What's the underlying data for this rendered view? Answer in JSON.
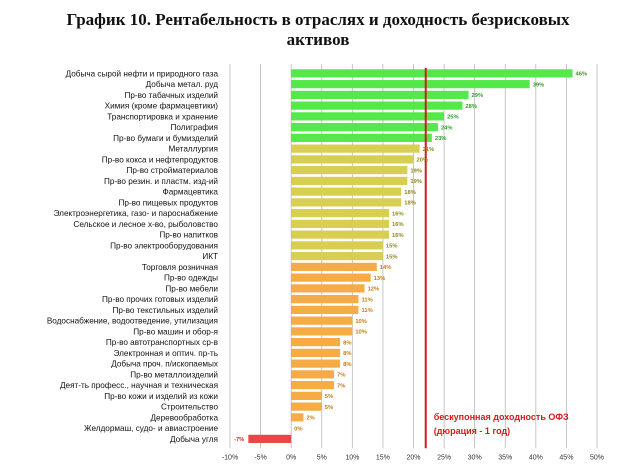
{
  "title_line1": "График 10. Рентабельность в отраслях и доходность безрисковых",
  "title_line2": "активов",
  "chart_data": {
    "type": "bar",
    "orientation": "horizontal",
    "xlim": [
      -10,
      50
    ],
    "xticks": [
      -10,
      -5,
      0,
      5,
      10,
      15,
      20,
      25,
      30,
      35,
      40,
      45,
      50
    ],
    "tick_suffix": "%",
    "grid": true,
    "categories": [
      "Добыча сырой нефти и природного газа",
      "Добыча метал. руд",
      "Пр-во табачных изделий",
      "Химия (кроме фармацевтики)",
      "Транспортировка и хранение",
      "Полиграфия",
      "Пр-во бумаги и бумизделий",
      "Металлургия",
      "Пр-во кокса и нефтепродуктов",
      "Пр-во стройматериалов",
      "Пр-во резин. и пластм. изд-ий",
      "Фармацевтика",
      "Пр-во пищевых продуктов",
      "Электроэнергетика, газо- и пароснабжение",
      "Сельское и лесное х-во, рыболовство",
      "Пр-во напитков",
      "Пр-во электрооборудования",
      "ИКТ",
      "Торговля розничная",
      "Пр-во одежды",
      "Пр-во мебели",
      "Пр-во прочих готовых изделий",
      "Пр-во текстильных изделий",
      "Водоснабжение, водоотведение, утилизация",
      "Пр-во машин и обор-я",
      "Пр-во автотранспортных ср-в",
      "Электронная и оптич. пр-ть",
      "Добыча проч. п/ископаемых",
      "Пр-во металлоизделий",
      "Деят-ть професс., научная и техническая",
      "Пр-во кожи и изделий из кожи",
      "Строительство",
      "Деревообработка",
      "Желдормаш, судо- и авиастроение",
      "Добыча угля"
    ],
    "values": [
      46,
      39,
      29,
      28,
      25,
      24,
      23,
      21,
      20,
      19,
      19,
      18,
      18,
      16,
      16,
      16,
      15,
      15,
      14,
      13,
      12,
      11,
      11,
      10,
      10,
      8,
      8,
      8,
      7,
      7,
      5,
      5,
      2,
      0,
      -7
    ],
    "value_labels": [
      "46%",
      "39%",
      "29%",
      "28%",
      "25%",
      "24%",
      "23%",
      "21%",
      "20%",
      "19%",
      "19%",
      "18%",
      "18%",
      "16%",
      "16%",
      "16%",
      "15%",
      "15%",
      "14%",
      "13%",
      "12%",
      "11%",
      "11%",
      "10%",
      "10%",
      "8%",
      "8%",
      "8%",
      "7%",
      "7%",
      "5%",
      "5%",
      "2%",
      "0%",
      "-7%"
    ],
    "colors": {
      "green": "#55e84a",
      "yellow": "#d8cf52",
      "orange": "#f7ab45",
      "red": "#ec4545",
      "green_label": "#2e9d2e",
      "yellow_label": "#8c8a1c",
      "orange_label": "#c77a12",
      "red_label": "#d21f1f",
      "grid": "#b8b8b8",
      "reference_line": "#d7191c"
    },
    "reference_line": {
      "value": 22,
      "label_line1": "бескупонная доходность ОФЗ",
      "label_line2": "(дюрация - 1 год)"
    }
  }
}
